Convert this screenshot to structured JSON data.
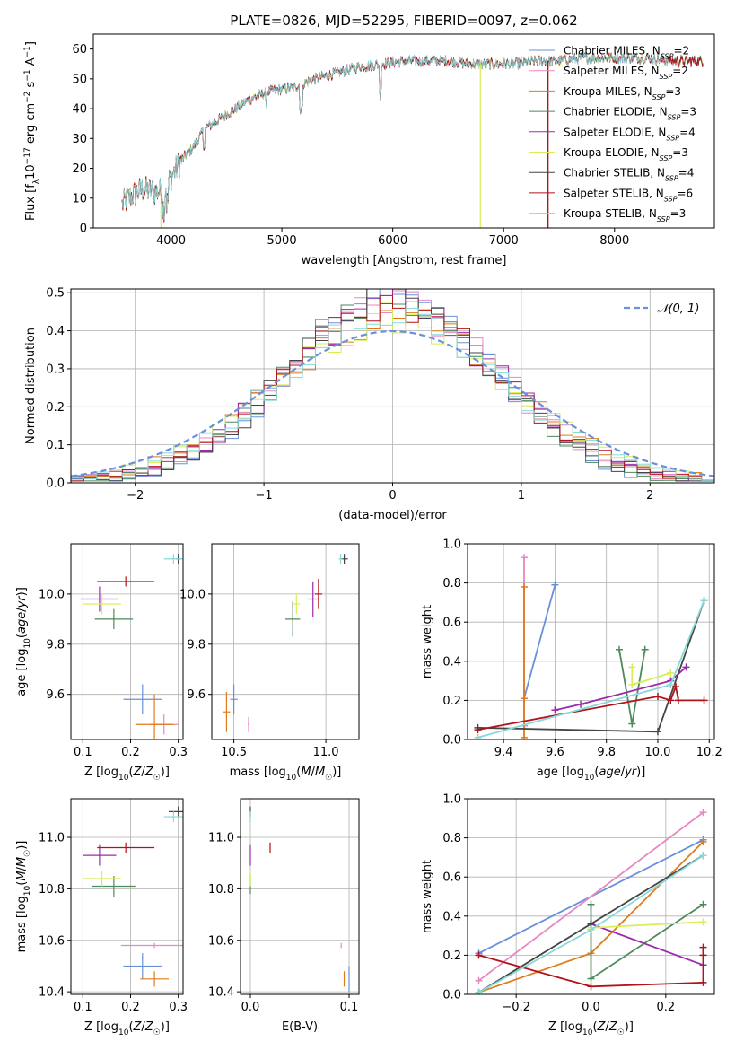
{
  "colors": {
    "Chabrier MILES": "#6890dd",
    "Salpeter MILES": "#e688c1",
    "Kroupa MILES": "#e07b1c",
    "Chabrier ELODIE": "#4e8a5a",
    "Salpeter ELODIE": "#9b2aad",
    "Kroupa ELODIE": "#d9ee55",
    "Chabrier STELIB": "#454545",
    "Salpeter STELIB": "#b2131a",
    "Kroupa STELIB": "#88d8d8",
    "gauss": "#6890dd",
    "grid": "#b0b0b0"
  },
  "chart_data": [
    {
      "type": "line",
      "title": "PLATE=0826, MJD=52295, FIBERID=0097, z=0.062",
      "xlabel": "wavelength [Angstrom, rest frame]",
      "ylabel": "Flux [f_λ10^-17 erg cm^-2 s^-1 A^-1]",
      "xlim": [
        3300,
        8900
      ],
      "ylim": [
        0,
        65
      ],
      "xticks": [
        4000,
        5000,
        6000,
        7000,
        8000
      ],
      "yticks": [
        0,
        10,
        20,
        30,
        40,
        50,
        60
      ],
      "legend_location": "upper right",
      "series": [
        {
          "name": "Chabrier MILES",
          "nssp": "2"
        },
        {
          "name": "Salpeter MILES",
          "nssp": "2"
        },
        {
          "name": "Kroupa MILES",
          "nssp": "3"
        },
        {
          "name": "Chabrier ELODIE",
          "nssp": "3"
        },
        {
          "name": "Salpeter ELODIE",
          "nssp": "4"
        },
        {
          "name": "Kroupa ELODIE",
          "nssp": "3"
        },
        {
          "name": "Chabrier STELIB",
          "nssp": "4"
        },
        {
          "name": "Salpeter STELIB",
          "nssp": "6"
        },
        {
          "name": "Kroupa STELIB",
          "nssp": "3"
        }
      ],
      "spectrum_continuum": {
        "wavelength": [
          3560,
          3650,
          3750,
          3850,
          3950,
          4000,
          4100,
          4200,
          4300,
          4500,
          4700,
          4900,
          5100,
          5300,
          5500,
          5700,
          5900,
          6100,
          6300,
          6500,
          6700,
          6900,
          7100,
          7300,
          7500,
          7700,
          7900,
          8100,
          8300,
          8500,
          8700,
          8800
        ],
        "flux": [
          8,
          11,
          13,
          12,
          13,
          17,
          23,
          27,
          33,
          38,
          43,
          46,
          47,
          50,
          52,
          54,
          55,
          56,
          56,
          56,
          55,
          55,
          55,
          56,
          56,
          57,
          57,
          57,
          57,
          56,
          56,
          56
        ]
      }
    },
    {
      "type": "line",
      "xlabel": "(data-model)/error",
      "ylabel": "Normed distribution",
      "xlim": [
        -2.5,
        2.5
      ],
      "ylim": [
        0,
        0.51
      ],
      "xticks": [
        -2,
        -1,
        0,
        1,
        2
      ],
      "yticks": [
        0.0,
        0.1,
        0.2,
        0.3,
        0.4,
        0.5
      ],
      "legend": "N(0,1)",
      "legend_location": "upper right",
      "bin_width": 0.1,
      "hist_start": -2.5,
      "gaussian": {
        "mean": 0,
        "sigma": 1
      }
    },
    {
      "type": "scatter",
      "xlabel": "Z [log10(Z/Z☉)]",
      "ylabel": "age  [log10(age/yr)]",
      "xlim": [
        0.075,
        0.31
      ],
      "ylim": [
        9.42,
        10.2
      ],
      "xticks": [
        0.1,
        0.2,
        0.3
      ],
      "yticks": [
        9.6,
        9.8,
        10.0
      ],
      "points": [
        {
          "series": "Chabrier MILES",
          "x": 0.225,
          "xerr": 0.04,
          "y": 9.58,
          "yerr": 0.06
        },
        {
          "series": "Salpeter MILES",
          "x": 0.27,
          "xerr": 0.03,
          "y": 9.48,
          "yerr": 0.04
        },
        {
          "series": "Kroupa MILES",
          "x": 0.25,
          "xerr": 0.04,
          "y": 9.48,
          "yerr": 0.12
        },
        {
          "series": "Chabrier ELODIE",
          "x": 0.165,
          "xerr": 0.04,
          "y": 9.9,
          "yerr": 0.04
        },
        {
          "series": "Salpeter ELODIE",
          "x": 0.135,
          "xerr": 0.04,
          "y": 9.98,
          "yerr": 0.05
        },
        {
          "series": "Kroupa ELODIE",
          "x": 0.14,
          "xerr": 0.04,
          "y": 9.96,
          "yerr": 0.04
        },
        {
          "series": "Chabrier STELIB",
          "x": 0.3,
          "xerr": 0.005,
          "y": 10.14,
          "yerr": 0.02
        },
        {
          "series": "Salpeter STELIB",
          "x": 0.19,
          "xerr": 0.06,
          "y": 10.05,
          "yerr": 0.02
        },
        {
          "series": "Kroupa STELIB",
          "x": 0.29,
          "xerr": 0.02,
          "y": 10.14,
          "yerr": 0.02
        }
      ]
    },
    {
      "type": "scatter",
      "xlabel": "mass [log10(M/M☉)]",
      "xlim": [
        10.38,
        11.18
      ],
      "ylim": [
        9.42,
        10.2
      ],
      "xticks": [
        10.5,
        11.0
      ],
      "yticks": [
        9.6,
        9.8,
        10.0
      ],
      "points": [
        {
          "series": "Chabrier MILES",
          "x": 10.5,
          "xerr": 0.02,
          "y": 9.58,
          "yerr": 0.06
        },
        {
          "series": "Salpeter MILES",
          "x": 10.58,
          "xerr": 0.005,
          "y": 9.48,
          "yerr": 0.03
        },
        {
          "series": "Kroupa MILES",
          "x": 10.46,
          "xerr": 0.02,
          "y": 9.53,
          "yerr": 0.08
        },
        {
          "series": "Chabrier ELODIE",
          "x": 10.82,
          "xerr": 0.04,
          "y": 9.9,
          "yerr": 0.07
        },
        {
          "series": "Salpeter ELODIE",
          "x": 10.93,
          "xerr": 0.03,
          "y": 9.98,
          "yerr": 0.07
        },
        {
          "series": "Kroupa ELODIE",
          "x": 10.84,
          "xerr": 0.02,
          "y": 9.96,
          "yerr": 0.04
        },
        {
          "series": "Chabrier STELIB",
          "x": 11.1,
          "xerr": 0.02,
          "y": 10.14,
          "yerr": 0.02
        },
        {
          "series": "Salpeter STELIB",
          "x": 10.96,
          "xerr": 0.02,
          "y": 10.0,
          "yerr": 0.06
        },
        {
          "series": "Kroupa STELIB",
          "x": 11.08,
          "xerr": 0.01,
          "y": 10.14,
          "yerr": 0.02
        }
      ]
    },
    {
      "type": "line",
      "xlabel": "age  [log10(age/yr)]",
      "ylabel": "mass weight",
      "xlim": [
        9.26,
        10.22
      ],
      "ylim": [
        0,
        1.0
      ],
      "xticks": [
        9.4,
        9.6,
        9.8,
        10.0,
        10.2
      ],
      "yticks": [
        0.0,
        0.2,
        0.4,
        0.6,
        0.8,
        1.0
      ],
      "series": [
        {
          "name": "Chabrier MILES",
          "x": [
            9.48,
            9.6
          ],
          "y": [
            0.21,
            0.79
          ]
        },
        {
          "name": "Salpeter MILES",
          "x": [
            9.48,
            9.48
          ],
          "y": [
            0.07,
            0.93
          ]
        },
        {
          "name": "Kroupa MILES",
          "x": [
            9.48,
            9.48,
            9.48
          ],
          "y": [
            0.01,
            0.21,
            0.78
          ]
        },
        {
          "name": "Chabrier ELODIE",
          "x": [
            9.85,
            9.9,
            9.95
          ],
          "y": [
            0.46,
            0.08,
            0.46
          ]
        },
        {
          "name": "Salpeter ELODIE",
          "x": [
            9.6,
            9.7,
            10.05,
            10.11
          ],
          "y": [
            0.15,
            0.18,
            0.3,
            0.37
          ]
        },
        {
          "name": "Kroupa ELODIE",
          "x": [
            9.9,
            9.9,
            10.05
          ],
          "y": [
            0.37,
            0.28,
            0.34
          ]
        },
        {
          "name": "Chabrier STELIB",
          "x": [
            9.3,
            10.0,
            10.18
          ],
          "y": [
            0.06,
            0.04,
            0.71
          ]
        },
        {
          "name": "Salpeter STELIB",
          "x": [
            9.3,
            10.0,
            10.05,
            10.07,
            10.08,
            10.18
          ],
          "y": [
            0.05,
            0.22,
            0.2,
            0.27,
            0.2,
            0.2
          ]
        },
        {
          "name": "Kroupa STELIB",
          "x": [
            9.3,
            10.05,
            10.18
          ],
          "y": [
            0.01,
            0.28,
            0.71
          ]
        }
      ]
    },
    {
      "type": "scatter",
      "xlabel": "Z [log10(Z/Z☉)]",
      "ylabel": "mass [log10(M/M☉)]",
      "xlim": [
        0.075,
        0.31
      ],
      "ylim": [
        10.39,
        11.15
      ],
      "xticks": [
        0.1,
        0.2,
        0.3
      ],
      "yticks": [
        10.4,
        10.6,
        10.8,
        11.0
      ],
      "points": [
        {
          "series": "Chabrier MILES",
          "x": 0.225,
          "xerr": 0.04,
          "y": 10.5,
          "yerr": 0.05
        },
        {
          "series": "Salpeter MILES",
          "x": 0.25,
          "xerr": 0.07,
          "y": 10.58,
          "yerr": 0.01
        },
        {
          "series": "Kroupa MILES",
          "x": 0.25,
          "xerr": 0.03,
          "y": 10.45,
          "yerr": 0.03
        },
        {
          "series": "Chabrier ELODIE",
          "x": 0.165,
          "xerr": 0.045,
          "y": 10.81,
          "yerr": 0.04
        },
        {
          "series": "Salpeter ELODIE",
          "x": 0.135,
          "xerr": 0.035,
          "y": 10.93,
          "yerr": 0.04
        },
        {
          "series": "Kroupa ELODIE",
          "x": 0.14,
          "xerr": 0.04,
          "y": 10.84,
          "yerr": 0.03
        },
        {
          "series": "Chabrier STELIB",
          "x": 0.3,
          "xerr": 0.02,
          "y": 11.1,
          "yerr": 0.02
        },
        {
          "series": "Salpeter STELIB",
          "x": 0.19,
          "xerr": 0.06,
          "y": 10.96,
          "yerr": 0.02
        },
        {
          "series": "Kroupa STELIB",
          "x": 0.29,
          "xerr": 0.02,
          "y": 11.08,
          "yerr": 0.02
        }
      ]
    },
    {
      "type": "scatter",
      "xlabel": "E(B-V)",
      "xlim": [
        -0.01,
        0.11
      ],
      "ylim": [
        10.39,
        11.15
      ],
      "xticks": [
        0.0,
        0.1
      ],
      "yticks": [
        10.4,
        10.6,
        10.8,
        11.0
      ],
      "points": [
        {
          "series": "Chabrier MILES",
          "x": 0.1,
          "y": 10.45,
          "yerr": 0.05
        },
        {
          "series": "Salpeter MILES",
          "x": 0.092,
          "y": 10.58,
          "yerr": 0.01
        },
        {
          "series": "Kroupa MILES",
          "x": 0.095,
          "y": 10.45,
          "yerr": 0.03
        },
        {
          "series": "Chabrier ELODIE",
          "x": 0.0,
          "y": 10.82,
          "yerr": 0.04
        },
        {
          "series": "Salpeter ELODIE",
          "x": 0.0,
          "y": 10.93,
          "yerr": 0.04
        },
        {
          "series": "Kroupa ELODIE",
          "x": 0.0,
          "y": 10.84,
          "yerr": 0.03
        },
        {
          "series": "Chabrier STELIB",
          "x": 0.0,
          "y": 11.1,
          "yerr": 0.02
        },
        {
          "series": "Salpeter STELIB",
          "x": 0.02,
          "y": 10.96,
          "yerr": 0.02
        },
        {
          "series": "Kroupa STELIB",
          "x": 0.0,
          "y": 11.08,
          "yerr": 0.02
        }
      ]
    },
    {
      "type": "line",
      "xlabel": "Z [log10(Z/Z☉)]",
      "ylabel": "mass weight",
      "xlim": [
        -0.33,
        0.33
      ],
      "ylim": [
        0,
        1.0
      ],
      "xticks": [
        -0.2,
        0.0,
        0.2
      ],
      "yticks": [
        0.0,
        0.2,
        0.4,
        0.6,
        0.8,
        1.0
      ],
      "series": [
        {
          "name": "Chabrier MILES",
          "x": [
            -0.3,
            0.3
          ],
          "y": [
            0.21,
            0.79
          ]
        },
        {
          "name": "Salpeter MILES",
          "x": [
            -0.3,
            0.3
          ],
          "y": [
            0.07,
            0.93
          ]
        },
        {
          "name": "Kroupa MILES",
          "x": [
            -0.3,
            0.0,
            0.3
          ],
          "y": [
            0.01,
            0.21,
            0.78
          ]
        },
        {
          "name": "Chabrier ELODIE",
          "x": [
            0.0,
            0.0,
            0.3
          ],
          "y": [
            0.46,
            0.08,
            0.46
          ]
        },
        {
          "name": "Salpeter ELODIE",
          "x": [
            0.0,
            0.3
          ],
          "y": [
            0.36,
            0.15
          ]
        },
        {
          "name": "Kroupa ELODIE",
          "x": [
            0.0,
            0.3
          ],
          "y": [
            0.34,
            0.37
          ]
        },
        {
          "name": "Chabrier STELIB",
          "x": [
            -0.3,
            0.0,
            0.3
          ],
          "y": [
            0.01,
            0.36,
            0.71
          ]
        },
        {
          "name": "Salpeter STELIB",
          "x": [
            -0.3,
            0.0,
            0.3,
            0.3,
            0.3
          ],
          "y": [
            0.2,
            0.04,
            0.06,
            0.2,
            0.24
          ]
        },
        {
          "name": "Kroupa STELIB",
          "x": [
            -0.3,
            0.0,
            0.3
          ],
          "y": [
            0.01,
            0.33,
            0.71
          ]
        }
      ]
    }
  ]
}
